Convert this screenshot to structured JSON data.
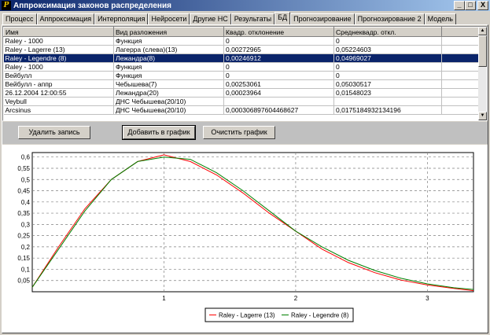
{
  "window": {
    "title": "Аппроксимация законов распределения",
    "icon_letter": "P",
    "minimize": "_",
    "maximize": "□",
    "close": "X"
  },
  "tabs": [
    {
      "label": "Процесс",
      "active": false
    },
    {
      "label": "Аппроксимация",
      "active": false
    },
    {
      "label": "Интерполяция",
      "active": false
    },
    {
      "label": "Нейросети",
      "active": false
    },
    {
      "label": "Другие НС",
      "active": false
    },
    {
      "label": "Результаты",
      "active": false
    },
    {
      "label": "БД",
      "active": true
    },
    {
      "label": "Прогнозирование",
      "active": false
    },
    {
      "label": "Прогнозирование 2",
      "active": false
    },
    {
      "label": "Модель",
      "active": false
    }
  ],
  "table": {
    "columns": [
      "Имя",
      "Вид разложения",
      "Квадр. отклонение",
      "Среднеквадр. откл."
    ],
    "rows": [
      [
        "Raley - 1000",
        "Функция",
        "0",
        "0"
      ],
      [
        "Raley - Lagerre (13)",
        "Лагерра (слева)(13)",
        "0,00272965",
        "0,05224603"
      ],
      [
        "Raley - Legendre (8)",
        "Лежандра(8)",
        "0,00246912",
        "0,04969027"
      ],
      [
        "Raley - 1000",
        "Функция",
        "0",
        "0"
      ],
      [
        "Вейбулл",
        "Функция",
        "0",
        "0"
      ],
      [
        "Вейбулл - аппр",
        "Чебышева(7)",
        "0,00253061",
        "0,05030517"
      ],
      [
        "26.12.2004 12:00:55",
        "Лежандра(20)",
        "0,00023964",
        "0,01548023"
      ],
      [
        "Veybull",
        "ДНС Чебышева(20/10)",
        "",
        ""
      ],
      [
        "Arcsinus",
        "ДНС Чебышева(20/10)",
        "0,000306897604468627",
        "0,0175184932134196"
      ]
    ],
    "selected_row": 2
  },
  "buttons": {
    "delete": "Удалить запись",
    "add_to_chart": "Добавить в график",
    "clear_chart": "Очистить график"
  },
  "chart_data": {
    "type": "line",
    "xlim": [
      0,
      3.35
    ],
    "ylim": [
      0,
      0.62
    ],
    "x_ticks": [
      1,
      2,
      3
    ],
    "y_ticks": [
      0.05,
      0.1,
      0.15,
      0.2,
      0.25,
      0.3,
      0.35,
      0.4,
      0.45,
      0.5,
      0.55,
      0.6
    ],
    "y_tick_labels": [
      "0,05",
      "0,1",
      "0,15",
      "0,2",
      "0,25",
      "0,3",
      "0,35",
      "0,4",
      "0,45",
      "0,5",
      "0,55",
      "0,6"
    ],
    "grid": true,
    "legend_position": "bottom-center",
    "series": [
      {
        "name": "Raley - Lagerre (13)",
        "color": "#ff0000",
        "x": [
          0,
          0.2,
          0.4,
          0.6,
          0.8,
          1.0,
          1.2,
          1.4,
          1.6,
          1.8,
          2.0,
          2.2,
          2.4,
          2.6,
          2.8,
          3.0,
          3.2,
          3.35
        ],
        "y": [
          0.02,
          0.2,
          0.37,
          0.5,
          0.58,
          0.61,
          0.58,
          0.52,
          0.44,
          0.35,
          0.27,
          0.19,
          0.13,
          0.085,
          0.052,
          0.03,
          0.015,
          0.005
        ]
      },
      {
        "name": "Raley - Legendre (8)",
        "color": "#008000",
        "x": [
          0,
          0.2,
          0.4,
          0.6,
          0.8,
          1.0,
          1.2,
          1.4,
          1.6,
          1.8,
          2.0,
          2.2,
          2.4,
          2.6,
          2.8,
          3.0,
          3.2,
          3.35
        ],
        "y": [
          0.02,
          0.19,
          0.36,
          0.5,
          0.58,
          0.6,
          0.59,
          0.53,
          0.45,
          0.36,
          0.27,
          0.2,
          0.14,
          0.095,
          0.06,
          0.035,
          0.018,
          0.01
        ]
      }
    ]
  }
}
